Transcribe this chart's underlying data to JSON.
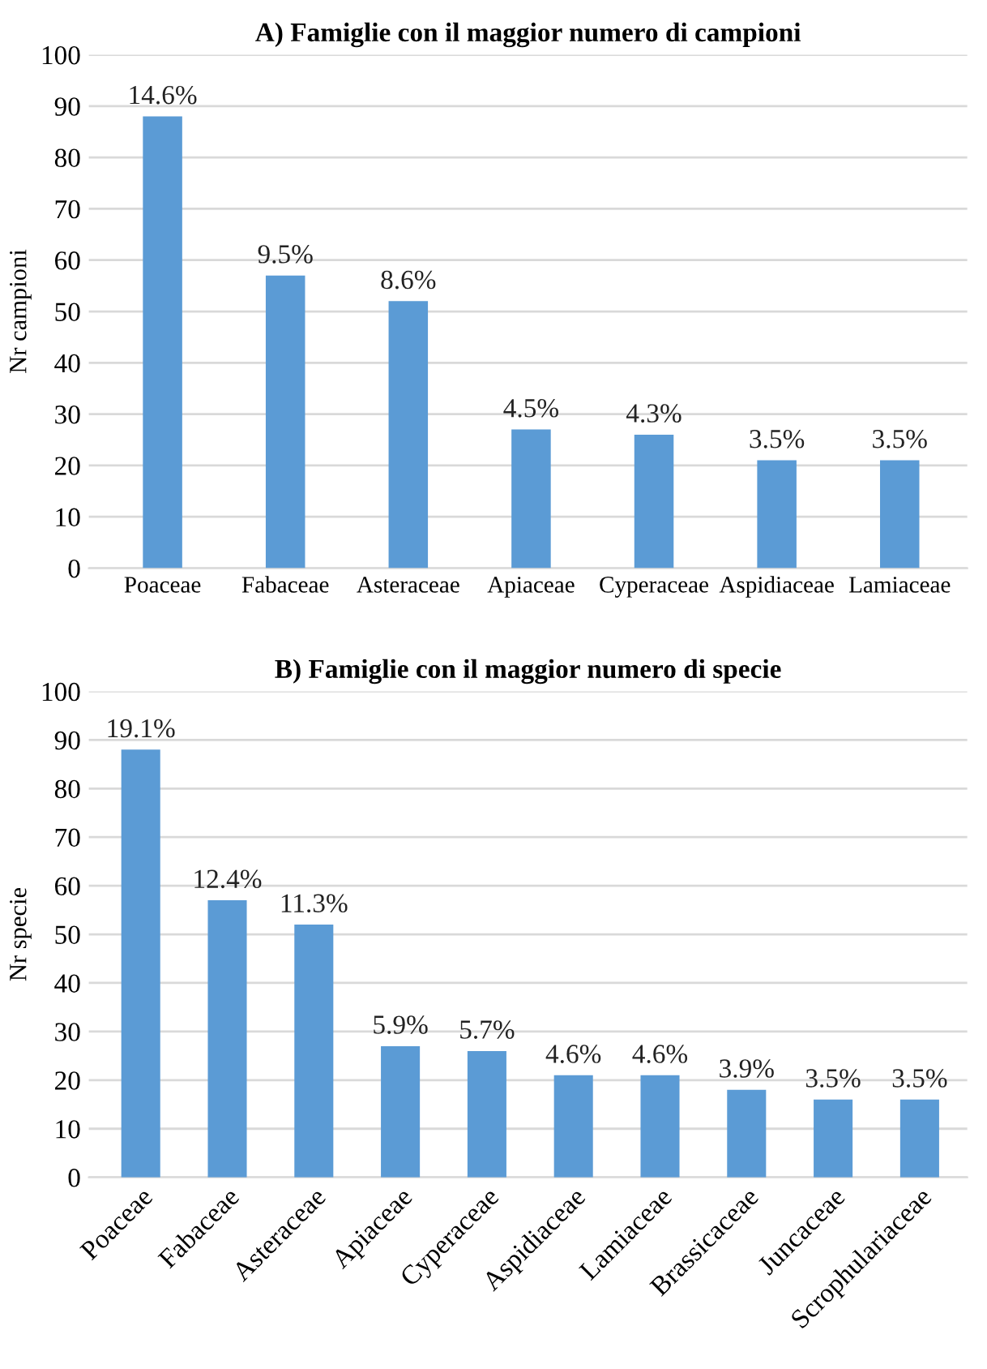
{
  "chart_data": [
    {
      "type": "bar",
      "title": "A) Famiglie con il maggior numero di campioni",
      "ylabel": "Nr campioni",
      "categories": [
        "Poaceae",
        "Fabaceae",
        "Asteraceae",
        "Apiaceae",
        "Cyperaceae",
        "Aspidiaceae",
        "Lamiaceae"
      ],
      "values": [
        88,
        57,
        52,
        27,
        26,
        21,
        21
      ],
      "annotations": [
        {
          "text": "14.6%",
          "x": "Poaceae",
          "y": 88
        },
        {
          "text": "9.5%",
          "x": "Fabaceae",
          "y": 57
        },
        {
          "text": "8.6%",
          "x": "Asteraceae",
          "y": 52
        },
        {
          "text": "4.5%",
          "x": "Apiaceae",
          "y": 27
        },
        {
          "text": "4.3%",
          "x": "Cyperaceae",
          "y": 26
        },
        {
          "text": "3.5%",
          "x": "Aspidiaceae",
          "y": 21
        },
        {
          "text": "3.5%",
          "x": "Lamiaceae",
          "y": 21
        }
      ],
      "color": "#5b9bd5",
      "ylim": [
        0,
        100
      ],
      "yticks": [
        0,
        10,
        20,
        30,
        40,
        50,
        60,
        70,
        80,
        90,
        100
      ],
      "grid": "y"
    },
    {
      "type": "bar",
      "title": "B) Famiglie con il maggior numero di specie",
      "ylabel": "Nr specie",
      "categories": [
        "Poaceae",
        "Fabaceae",
        "Asteraceae",
        "Apiaceae",
        "Cyperaceae",
        "Aspidiaceae",
        "Lamiaceae",
        "Brassicaceae",
        "Juncaceae",
        "Scrophulariaceae"
      ],
      "values": [
        88,
        57,
        52,
        27,
        26,
        21,
        21,
        18,
        16,
        16
      ],
      "annotations": [
        {
          "text": "19.1%",
          "x": "Poaceae",
          "y": 88
        },
        {
          "text": "12.4%",
          "x": "Fabaceae",
          "y": 57
        },
        {
          "text": "11.3%",
          "x": "Asteraceae",
          "y": 52
        },
        {
          "text": "5.9%",
          "x": "Apiaceae",
          "y": 27
        },
        {
          "text": "5.7%",
          "x": "Cyperaceae",
          "y": 26
        },
        {
          "text": "4.6%",
          "x": "Aspidiaceae",
          "y": 21
        },
        {
          "text": "4.6%",
          "x": "Lamiaceae",
          "y": 21
        },
        {
          "text": "3.9%",
          "x": "Brassicaceae",
          "y": 18
        },
        {
          "text": "3.5%",
          "x": "Juncaceae",
          "y": 16
        },
        {
          "text": "3.5%",
          "x": "Scrophulariaceae",
          "y": 16
        }
      ],
      "color": "#5b9bd5",
      "ylim": [
        0,
        100
      ],
      "yticks": [
        0,
        10,
        20,
        30,
        40,
        50,
        60,
        70,
        80,
        90,
        100
      ],
      "grid": "y"
    }
  ]
}
